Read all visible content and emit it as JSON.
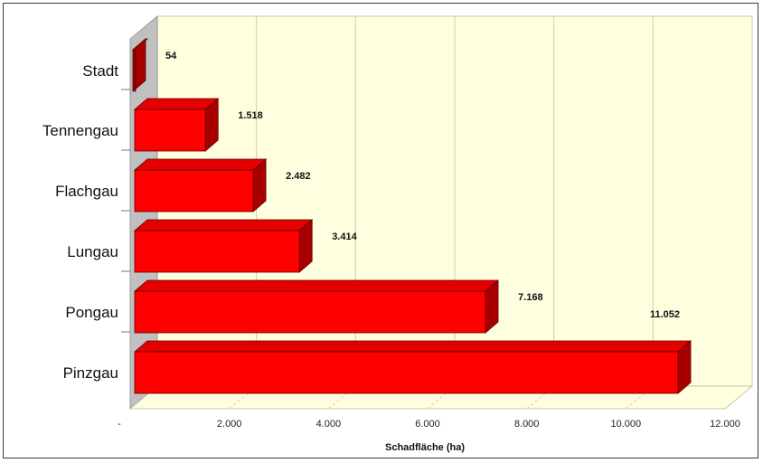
{
  "chart_data": {
    "type": "bar",
    "orientation": "horizontal",
    "title": "",
    "xlabel": "Schadfläche (ha)",
    "ylabel": "",
    "categories": [
      "Stadt",
      "Tennengau",
      "Flachgau",
      "Lungau",
      "Pongau",
      "Pinzgau"
    ],
    "values": [
      54,
      1518,
      2482,
      3414,
      7168,
      11052
    ],
    "value_labels": [
      "54",
      "1.518",
      "2.482",
      "3.414",
      "7.168",
      "11.052"
    ],
    "xlim": [
      0,
      12000
    ],
    "x_ticks": [
      0,
      2000,
      4000,
      6000,
      8000,
      10000,
      12000
    ],
    "x_tick_labels": [
      "-",
      "2.000",
      "4.000",
      "6.000",
      "8.000",
      "10.000",
      "12.000"
    ],
    "grid": true,
    "colors": {
      "bar_front": "#ff0000",
      "bar_top": "#e40000",
      "bar_side": "#a80000",
      "bar_outline": "#5a0000",
      "plot_background": "#ffffe0",
      "left_wall": "#c0c0c0",
      "grid": "#cfcfa0"
    }
  }
}
